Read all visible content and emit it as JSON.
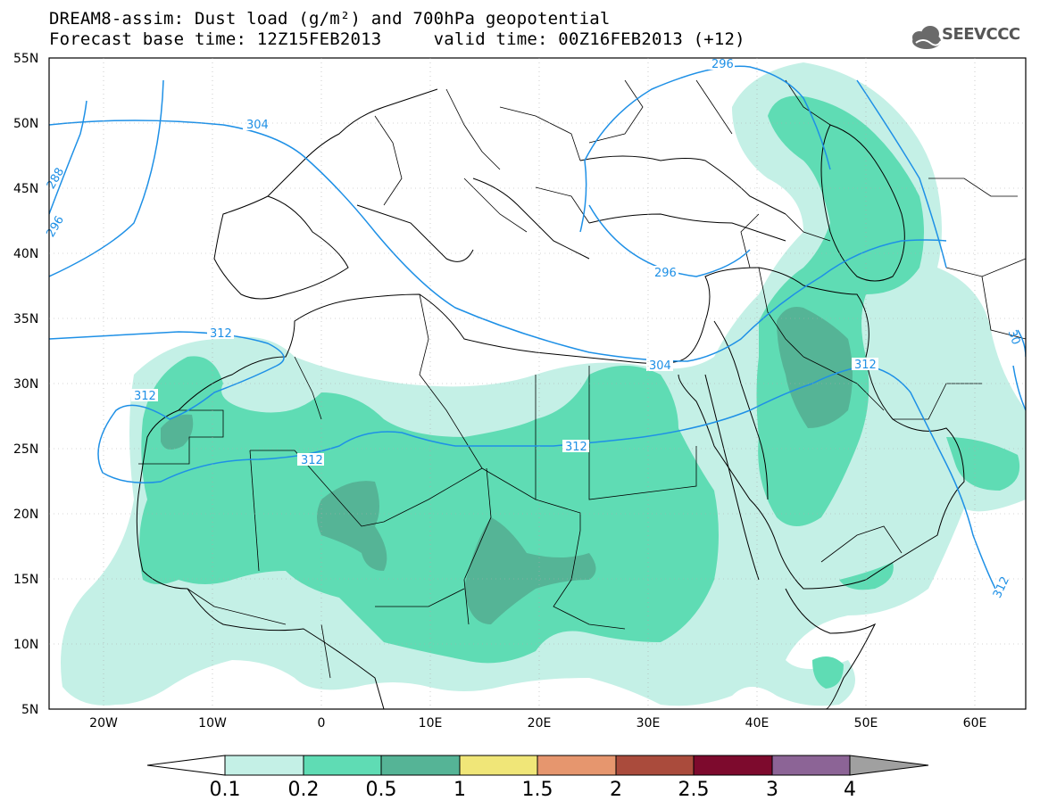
{
  "header": {
    "title_line1": "DREAM8-assim: Dust load (g/m²) and 700hPa geopotential",
    "title_line2": "Forecast base time: 12Z15FEB2013     valid time: 00Z16FEB2013 (+12)",
    "logo_text": "SEEVCCC",
    "logo_icon": "cloud-icon"
  },
  "map": {
    "lon_range": [
      -25,
      65
    ],
    "lat_range": [
      5,
      55
    ],
    "lat_labels": [
      "55N",
      "50N",
      "45N",
      "40N",
      "35N",
      "30N",
      "25N",
      "20N",
      "15N",
      "10N",
      "5N"
    ],
    "lon_labels": [
      "20W",
      "10W",
      "0",
      "10E",
      "20E",
      "30E",
      "40E",
      "50E",
      "60E"
    ],
    "contour_color": "#1e90e6",
    "contour_labels": [
      "296",
      "304",
      "296",
      "288",
      "312",
      "312",
      "312",
      "312",
      "312",
      "312",
      "296",
      "304",
      "312",
      "312",
      "30"
    ]
  },
  "colorbar": {
    "levels": [
      "0.1",
      "0.2",
      "0.5",
      "1",
      "1.5",
      "2",
      "2.5",
      "3",
      "4"
    ],
    "colors": [
      "#c4f0e6",
      "#5fdcb4",
      "#55b496",
      "#f0e678",
      "#e6966e",
      "#aa4b3c",
      "#7d0a2d",
      "#8c6496"
    ],
    "under_color": "#ffffff",
    "over_color": "#a0a0a0"
  }
}
